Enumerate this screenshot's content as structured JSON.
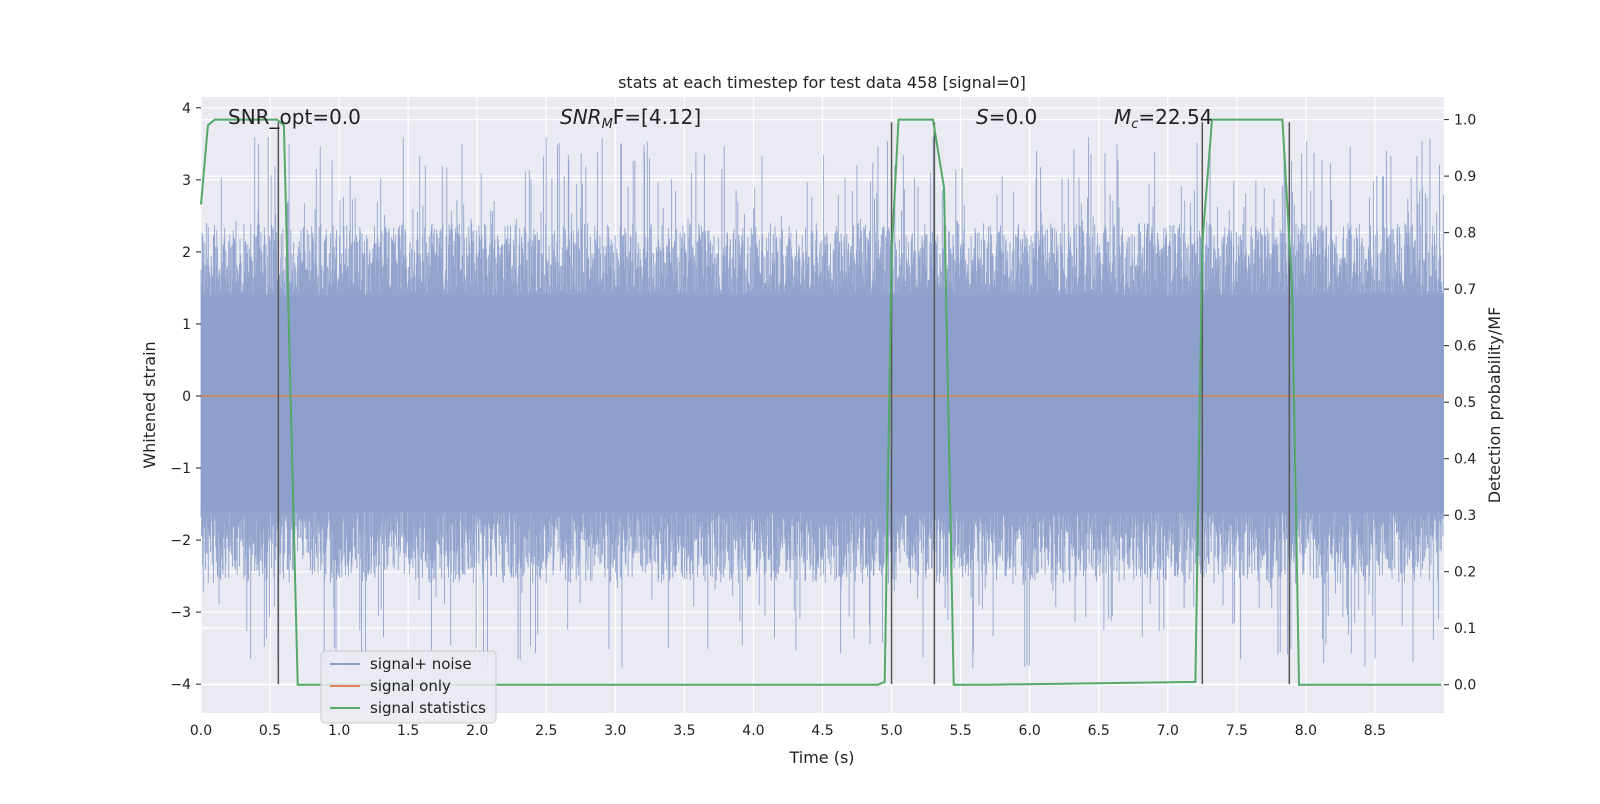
{
  "chart_data": {
    "type": "line",
    "title": "stats at each timestep for test data 458 [signal=0]",
    "xlabel": "Time (s)",
    "ylabel": "Whitened strain",
    "y2label": "Detection probability/MF",
    "xlim": [
      0.0,
      9.0
    ],
    "ylim": [
      -4.4,
      4.15
    ],
    "y2lim": [
      -0.05,
      1.04
    ],
    "xticks": [
      "0.0",
      "0.5",
      "1.0",
      "1.5",
      "2.0",
      "2.5",
      "3.0",
      "3.5",
      "4.0",
      "4.5",
      "5.0",
      "5.5",
      "6.0",
      "6.5",
      "7.0",
      "7.5",
      "8.0",
      "8.5"
    ],
    "yticks": [
      "4",
      "3",
      "2",
      "1",
      "0",
      "−1",
      "−2",
      "−3",
      "−4"
    ],
    "y2ticks": [
      "1.0",
      "0.9",
      "0.8",
      "0.7",
      "0.6",
      "0.5",
      "0.4",
      "0.3",
      "0.2",
      "0.1",
      "0.0"
    ],
    "grid": true,
    "legend": {
      "location": "lower-left",
      "entries": [
        {
          "name": "signal+ noise",
          "color": "#8da0cb"
        },
        {
          "name": "signal only",
          "color": "#dd8452"
        },
        {
          "name": "signal statistics",
          "color": "#55a868"
        }
      ]
    },
    "annotations": {
      "snr_opt_label": "SNR_opt=0.0",
      "snr_mf_label_prefix": "SNR",
      "snr_mf_label_sub": "M",
      "snr_mf_label_suffix": "F=[4.12]",
      "s_label_italic": "S",
      "s_label_rest": "=0.0",
      "mc_label_italic": "M",
      "mc_label_sub": "c",
      "mc_label_rest": "=22.54"
    },
    "noise_envelope": {
      "description_units": "strain",
      "typical_upper": 1.4,
      "typical_lower": -1.6,
      "peak_upper": 3.6,
      "peak_lower": -3.8
    },
    "signal_only": {
      "values_constant": 0.0
    },
    "signal_statistics": {
      "x": [
        0.0,
        0.05,
        0.1,
        0.55,
        0.6,
        0.7,
        4.9,
        4.95,
        5.0,
        5.05,
        5.3,
        5.38,
        5.45,
        5.7,
        7.2,
        7.25,
        7.32,
        7.83,
        7.9,
        7.95,
        8.98
      ],
      "y": [
        0.85,
        0.99,
        1.0,
        1.0,
        0.99,
        0.0,
        0.0,
        0.005,
        0.76,
        1.0,
        1.0,
        0.88,
        0.0,
        0.0,
        0.005,
        0.78,
        1.0,
        1.0,
        0.7,
        0.0,
        0.0
      ]
    },
    "vertical_markers_x": [
      0.56,
      5.0,
      5.31,
      7.25,
      7.88
    ],
    "marker_ymin": -4.0,
    "marker_ymax": 3.8,
    "colors": {
      "axes_bg": "#eaeaf2",
      "grid": "#ffffff",
      "noise": "#8da0cb",
      "signal": "#dd8452",
      "stats": "#55a868",
      "marker": "#555555"
    }
  }
}
